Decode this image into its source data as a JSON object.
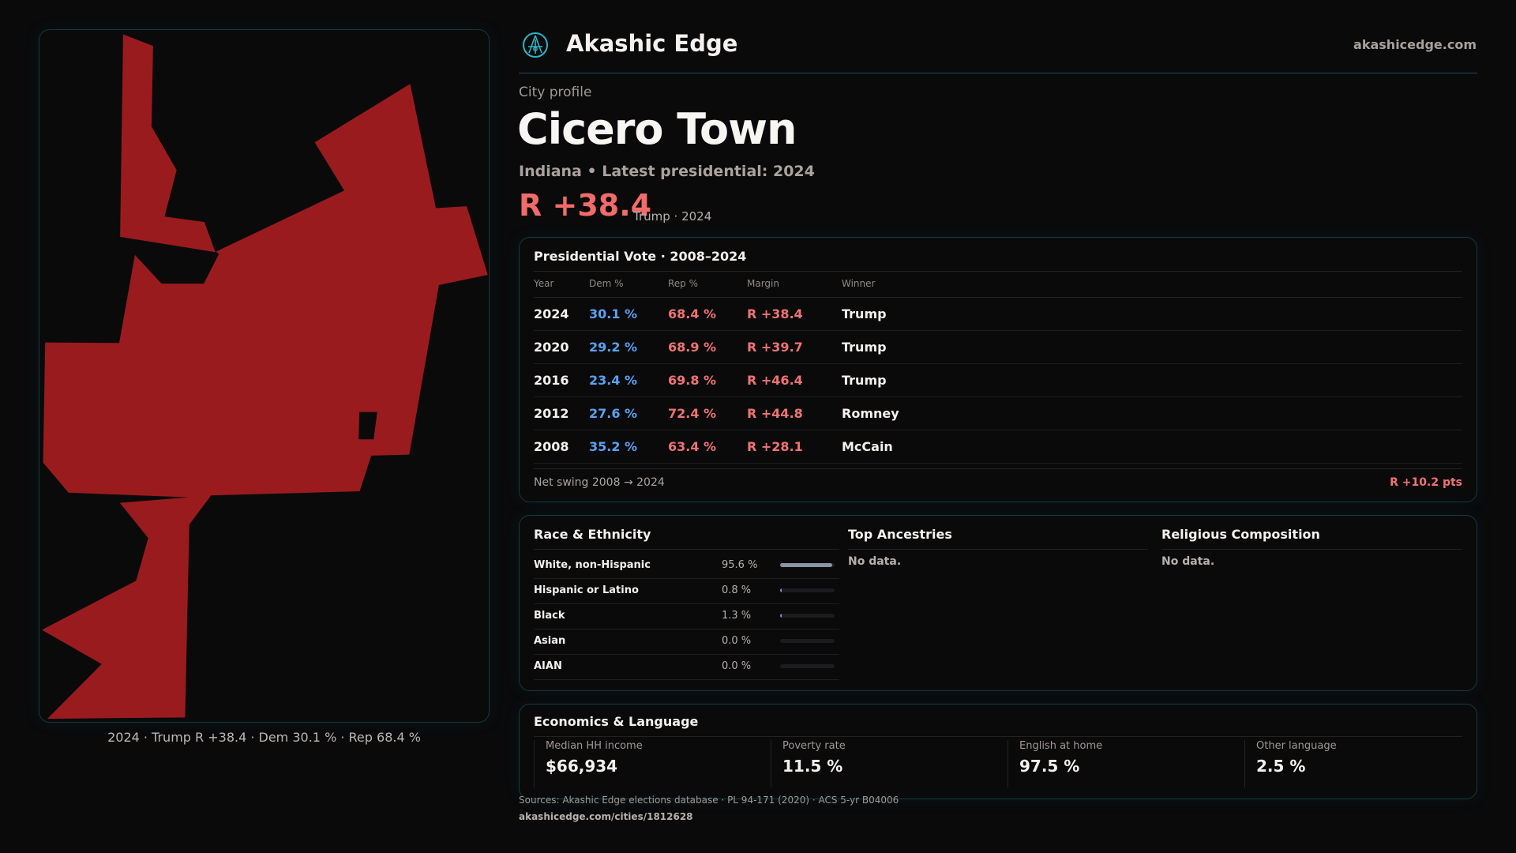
{
  "brand": {
    "name": "Akashic Edge",
    "site": "akashicedge.com",
    "logo_icon": "akashic-edge-logo"
  },
  "profile": {
    "kicker": "City profile",
    "city": "Cicero Town",
    "subtitle": "Indiana • Latest presidential: 2024",
    "headline_margin": "R +38.4",
    "headline_note": "Trump · 2024"
  },
  "map": {
    "caption": "2024 · Trump R +38.4 · Dem 30.1 % · Rep 68.4 %",
    "fill_color": "#9a1b1e"
  },
  "presidential": {
    "title": "Presidential Vote · 2008–2024",
    "headers": [
      "Year",
      "Dem %",
      "Rep %",
      "Margin",
      "Winner"
    ],
    "rows": [
      [
        "2024",
        "30.1 %",
        "68.4 %",
        "R +38.4",
        "Trump"
      ],
      [
        "2020",
        "29.2 %",
        "68.9 %",
        "R +39.7",
        "Trump"
      ],
      [
        "2016",
        "23.4 %",
        "69.8 %",
        "R +46.4",
        "Trump"
      ],
      [
        "2012",
        "27.6 %",
        "72.4 %",
        "R +44.8",
        "Romney"
      ],
      [
        "2008",
        "35.2 %",
        "63.4 %",
        "R +28.1",
        "McCain"
      ]
    ],
    "swing_label": "Net swing 2008 → 2024",
    "swing_value": "R +10.2 pts"
  },
  "race": {
    "title": "Race & Ethnicity",
    "items": [
      {
        "label": "White, non-Hispanic",
        "pct": "95.6 %",
        "value": 95.6
      },
      {
        "label": "Hispanic or Latino",
        "pct": "0.8 %",
        "value": 0.8
      },
      {
        "label": "Black",
        "pct": "1.3 %",
        "value": 1.3
      },
      {
        "label": "Asian",
        "pct": "0.0 %",
        "value": 0
      },
      {
        "label": "AIAN",
        "pct": "0.0 %",
        "value": 0
      }
    ]
  },
  "ancestries": {
    "title": "Top Ancestries",
    "empty": "No data."
  },
  "religion": {
    "title": "Religious Composition",
    "empty": "No data."
  },
  "economics": {
    "title": "Economics & Language",
    "stats": [
      {
        "label": "Median HH income",
        "value": "$66,934"
      },
      {
        "label": "Poverty rate",
        "value": "11.5 %"
      },
      {
        "label": "English at home",
        "value": "97.5 %"
      },
      {
        "label": "Other language",
        "value": "2.5 %"
      }
    ]
  },
  "footer": {
    "sources": "Sources: Akashic Edge elections database · PL 94-171 (2020) · ACS 5-yr B04006",
    "url": "akashicedge.com/cities/1812628"
  },
  "colors": {
    "dem": "#5aa2f5",
    "rep": "#f07373",
    "accent": "#1f4b52"
  }
}
